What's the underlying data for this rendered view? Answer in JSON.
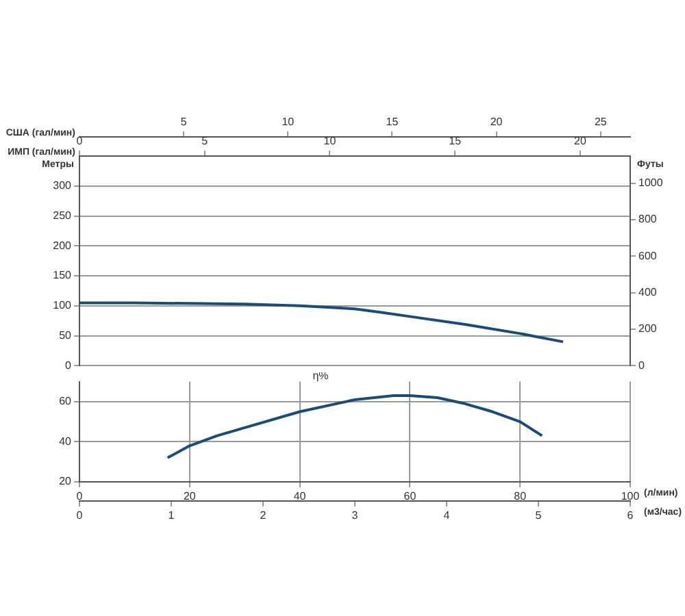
{
  "chart_data": [
    {
      "type": "line",
      "xlabel": "США (гал/мин)",
      "ylabel": "Метры",
      "y2label": "Футы",
      "x2label": "ИМП (гал/мин)",
      "x": [
        0,
        2.6,
        5.3,
        7.9,
        10.6,
        13.2,
        14.5,
        15.9,
        18.5,
        21.1,
        23.2
      ],
      "series": [
        {
          "color": "#1c4a7a",
          "values": [
            105,
            105,
            104,
            103,
            100,
            95,
            89,
            82,
            69,
            54,
            40
          ]
        }
      ],
      "xlim": [
        0,
        26.42
      ],
      "xticks": [
        5,
        10,
        15,
        20,
        25
      ],
      "ylim": [
        0,
        350
      ],
      "yticks": [
        0,
        50,
        100,
        150,
        200,
        250,
        300
      ],
      "y2lim": [
        0,
        1148
      ],
      "y2ticks": [
        0,
        200,
        400,
        600,
        800,
        1000
      ],
      "x2lim": [
        0,
        22
      ],
      "x2ticks": [
        0,
        5,
        10,
        15,
        20
      ],
      "grid": "y",
      "legend": false,
      "marker": "none",
      "line_style": "solid"
    },
    {
      "type": "line",
      "xlabel": "(л/мин)",
      "x2label": "(м3/час)",
      "annotations": [
        "η%"
      ],
      "x": [
        16,
        20,
        25,
        30,
        40,
        50,
        57,
        60,
        65,
        70,
        75,
        80,
        84
      ],
      "series": [
        {
          "color": "#1c4a7a",
          "values": [
            32,
            38,
            43,
            47,
            55,
            61,
            63,
            63,
            62,
            59,
            55,
            50,
            43
          ]
        }
      ],
      "xlim": [
        0,
        100
      ],
      "xticks": [
        0,
        20,
        40,
        60,
        80,
        100
      ],
      "x2lim": [
        0,
        6
      ],
      "x2ticks": [
        0,
        1,
        2,
        3,
        4,
        5,
        6
      ],
      "ylim": [
        20,
        70
      ],
      "yticks": [
        20,
        40,
        60
      ],
      "grid": true,
      "legend": false,
      "marker": "none",
      "line_style": "solid"
    }
  ]
}
